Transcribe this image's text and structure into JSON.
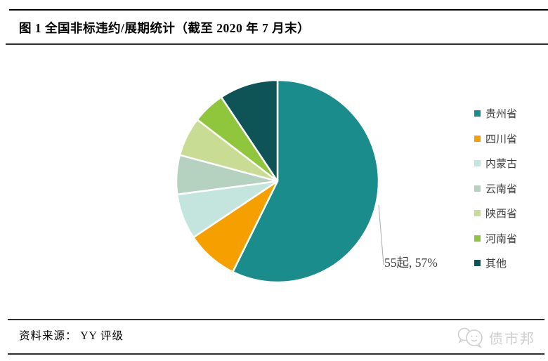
{
  "page": {
    "title": "图 1  全国非标违约/展期统计（截至 2020 年 7 月末）",
    "source_label": "资料来源：  YY 评级",
    "watermark_text": "债市邦"
  },
  "chart_data": {
    "type": "pie",
    "title": "全国非标违约/展期统计（截至 2020 年 7 月末）",
    "categories": [
      "贵州省",
      "四川省",
      "内蒙古",
      "云南省",
      "陕西省",
      "河南省",
      "其他"
    ],
    "values": [
      55,
      8,
      7,
      6,
      6,
      5,
      9
    ],
    "unit": "起",
    "colors": [
      "#1A8C8C",
      "#F5A000",
      "#C3E5DD",
      "#B5D1BF",
      "#C8DC94",
      "#90C63C",
      "#0E5457"
    ],
    "data_label": {
      "text": "55起, 57%",
      "slice": "贵州省",
      "value": 55,
      "percent": 57
    },
    "legend_position": "right",
    "start_angle_deg": 0,
    "direction": "clockwise",
    "slice_border_color": "#FFFFFF",
    "leader_line_color": "#ABABAB"
  }
}
